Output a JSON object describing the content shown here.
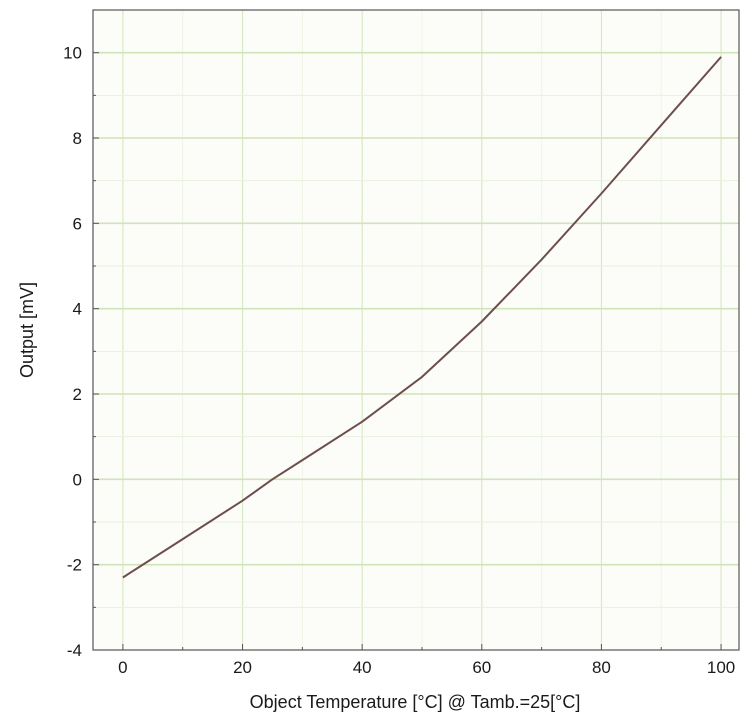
{
  "colors": {
    "plot_background": "#fcfdf9",
    "frame": "#555555",
    "curve": "#6e4e4c",
    "grid_major": "#cfe4b8",
    "grid_minor": "#e7f1dc"
  },
  "chart_data": {
    "type": "line",
    "title": "",
    "xlabel": "Object Temperature [°C] @ Tamb.=25[°C]",
    "ylabel": "Output [mV]",
    "xlim": [
      -5,
      103
    ],
    "ylim": [
      -4,
      11
    ],
    "x_ticks": [
      0,
      20,
      40,
      60,
      80,
      100
    ],
    "x_tick_labels": [
      "0",
      "20",
      "40",
      "60",
      "80",
      "100"
    ],
    "y_ticks": [
      -4,
      -2,
      0,
      2,
      4,
      6,
      8,
      10
    ],
    "y_tick_labels": [
      "-4",
      "-2",
      "0",
      "2",
      "4",
      "6",
      "8",
      "10"
    ],
    "grid": true,
    "legend": "none",
    "series": [
      {
        "x": [
          0,
          10,
          20,
          25,
          30,
          40,
          50,
          60,
          70,
          80,
          90,
          100
        ],
        "y": [
          -2.3,
          -1.4,
          -0.5,
          0.0,
          0.45,
          1.35,
          2.4,
          3.7,
          5.15,
          6.7,
          8.3,
          9.9
        ]
      }
    ]
  }
}
